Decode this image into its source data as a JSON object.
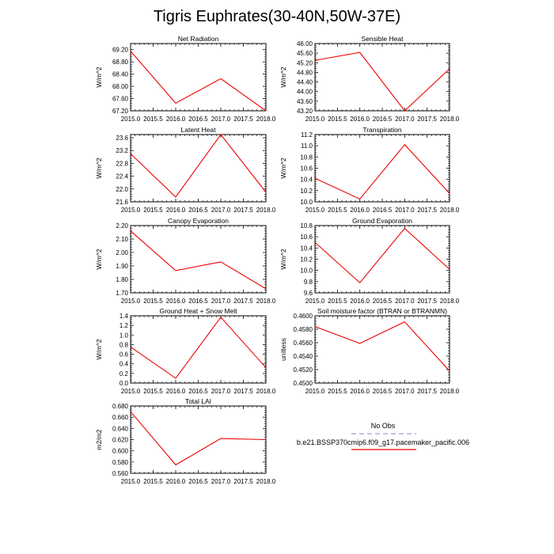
{
  "title": "Tigris Euphrates(30-40N,50W-37E)",
  "legend": {
    "entries": [
      {
        "name": "No Obs",
        "color": "#aaaaee",
        "dashed": true
      },
      {
        "name": "b.e21.BSSP370cmip6.f09_g17.pacemaker_pacific.006",
        "color": "#ee0000",
        "dashed": false
      }
    ]
  },
  "chart_data": [
    {
      "type": "line",
      "title": "Net Radiation",
      "ylabel": "W/m^2",
      "x": [
        2015.0,
        2016.0,
        2017.0,
        2018.0
      ],
      "series": [
        {
          "name": "b.e21.BSSP370cmip6.f09_g17.pacemaker_pacific.006",
          "values": [
            69.15,
            67.45,
            68.25,
            67.2
          ]
        }
      ],
      "xlim": [
        2015.0,
        2018.0
      ],
      "ylim": [
        67.2,
        69.4
      ],
      "xticks": [
        "2015.0",
        "2015.5",
        "2016.0",
        "2016.5",
        "2017.0",
        "2017.5",
        "2018.0"
      ],
      "yticks": [
        "67.20",
        "67.60",
        "68.00",
        "68.40",
        "68.80",
        "69.20"
      ],
      "ytick_values": [
        67.2,
        67.6,
        68.0,
        68.4,
        68.8,
        69.2
      ]
    },
    {
      "type": "line",
      "title": "Sensible Heat",
      "ylabel": "W/m^2",
      "x": [
        2015.0,
        2016.0,
        2017.0,
        2018.0
      ],
      "series": [
        {
          "name": "b.e21.BSSP370cmip6.f09_g17.pacemaker_pacific.006",
          "values": [
            45.3,
            45.63,
            43.2,
            44.95
          ]
        }
      ],
      "xlim": [
        2015.0,
        2018.0
      ],
      "ylim": [
        43.2,
        46.0
      ],
      "xticks": [
        "2015.0",
        "2015.5",
        "2016.0",
        "2016.5",
        "2017.0",
        "2017.5",
        "2018.0"
      ],
      "yticks": [
        "43.20",
        "43.60",
        "44.00",
        "44.40",
        "44.80",
        "45.20",
        "45.60",
        "46.00"
      ],
      "ytick_values": [
        43.2,
        43.6,
        44.0,
        44.4,
        44.8,
        45.2,
        45.6,
        46.0
      ]
    },
    {
      "type": "line",
      "title": "Latent Heat",
      "ylabel": "W/m^2",
      "x": [
        2015.0,
        2016.0,
        2017.0,
        2018.0
      ],
      "series": [
        {
          "name": "b.e21.BSSP370cmip6.f09_g17.pacemaker_pacific.006",
          "values": [
            23.1,
            21.75,
            23.7,
            21.9
          ]
        }
      ],
      "xlim": [
        2015.0,
        2018.0
      ],
      "ylim": [
        21.6,
        23.7
      ],
      "xticks": [
        "2015.0",
        "2015.5",
        "2016.0",
        "2016.5",
        "2017.0",
        "2017.5",
        "2018.0"
      ],
      "yticks": [
        "21.6",
        "22.0",
        "22.4",
        "22.8",
        "23.2",
        "23.6"
      ],
      "ytick_values": [
        21.6,
        22.0,
        22.4,
        22.8,
        23.2,
        23.6
      ]
    },
    {
      "type": "line",
      "title": "Transpiration",
      "ylabel": "W/m^2",
      "x": [
        2015.0,
        2016.0,
        2017.0,
        2018.0
      ],
      "series": [
        {
          "name": "b.e21.BSSP370cmip6.f09_g17.pacemaker_pacific.006",
          "values": [
            10.42,
            10.05,
            11.02,
            10.15
          ]
        }
      ],
      "xlim": [
        2015.0,
        2018.0
      ],
      "ylim": [
        10.0,
        11.2
      ],
      "xticks": [
        "2015.0",
        "2015.5",
        "2016.0",
        "2016.5",
        "2017.0",
        "2017.5",
        "2018.0"
      ],
      "yticks": [
        "10.0",
        "10.2",
        "10.4",
        "10.6",
        "10.8",
        "11.0",
        "11.2"
      ],
      "ytick_values": [
        10.0,
        10.2,
        10.4,
        10.6,
        10.8,
        11.0,
        11.2
      ]
    },
    {
      "type": "line",
      "title": "Canopy Evaporation",
      "ylabel": "W/m^2",
      "x": [
        2015.0,
        2016.0,
        2017.0,
        2018.0
      ],
      "series": [
        {
          "name": "b.e21.BSSP370cmip6.f09_g17.pacemaker_pacific.006",
          "values": [
            2.16,
            1.865,
            1.93,
            1.73
          ]
        }
      ],
      "xlim": [
        2015.0,
        2018.0
      ],
      "ylim": [
        1.7,
        2.2
      ],
      "xticks": [
        "2015.0",
        "2015.5",
        "2016.0",
        "2016.5",
        "2017.0",
        "2017.5",
        "2018.0"
      ],
      "yticks": [
        "1.70",
        "1.80",
        "1.90",
        "2.00",
        "2.10",
        "2.20"
      ],
      "ytick_values": [
        1.7,
        1.8,
        1.9,
        2.0,
        2.1,
        2.2
      ]
    },
    {
      "type": "line",
      "title": "Ground Evaporation",
      "ylabel": "W/m^2",
      "x": [
        2015.0,
        2016.0,
        2017.0,
        2018.0
      ],
      "series": [
        {
          "name": "b.e21.BSSP370cmip6.f09_g17.pacemaker_pacific.006",
          "values": [
            10.5,
            9.78,
            10.75,
            10.02
          ]
        }
      ],
      "xlim": [
        2015.0,
        2018.0
      ],
      "ylim": [
        9.6,
        10.8
      ],
      "xticks": [
        "2015.0",
        "2015.5",
        "2016.0",
        "2016.5",
        "2017.0",
        "2017.5",
        "2018.0"
      ],
      "yticks": [
        "9.6",
        "9.8",
        "10.0",
        "10.2",
        "10.4",
        "10.6",
        "10.8"
      ],
      "ytick_values": [
        9.6,
        9.8,
        10.0,
        10.2,
        10.4,
        10.6,
        10.8
      ]
    },
    {
      "type": "line",
      "title": "Ground Heat + Snow Melt",
      "ylabel": "W/m^2",
      "x": [
        2015.0,
        2016.0,
        2017.0,
        2018.0
      ],
      "series": [
        {
          "name": "b.e21.BSSP370cmip6.f09_g17.pacemaker_pacific.006",
          "values": [
            0.75,
            0.1,
            1.37,
            0.32
          ]
        }
      ],
      "xlim": [
        2015.0,
        2018.0
      ],
      "ylim": [
        0.0,
        1.4
      ],
      "xticks": [
        "2015.0",
        "2015.5",
        "2016.0",
        "2016.5",
        "2017.0",
        "2017.5",
        "2018.0"
      ],
      "yticks": [
        "0.0",
        "0.2",
        "0.4",
        "0.6",
        "0.8",
        "1.0",
        "1.2",
        "1.4"
      ],
      "ytick_values": [
        0.0,
        0.2,
        0.4,
        0.6,
        0.8,
        1.0,
        1.2,
        1.4
      ]
    },
    {
      "type": "line",
      "title": "Soil moisture factor (BTRAN or BTRANMN)",
      "ylabel": "unitless",
      "x": [
        2015.0,
        2016.0,
        2017.0,
        2018.0
      ],
      "series": [
        {
          "name": "b.e21.BSSP370cmip6.f09_g17.pacemaker_pacific.006",
          "values": [
            0.4584,
            0.4559,
            0.4591,
            0.4518
          ]
        }
      ],
      "xlim": [
        2015.0,
        2018.0
      ],
      "ylim": [
        0.45,
        0.46
      ],
      "xticks": [
        "2015.0",
        "2015.5",
        "2016.0",
        "2016.5",
        "2017.0",
        "2017.5",
        "2018.0"
      ],
      "yticks": [
        "0.4500",
        "0.4520",
        "0.4540",
        "0.4560",
        "0.4580",
        "0.4600"
      ],
      "ytick_values": [
        0.45,
        0.452,
        0.454,
        0.456,
        0.458,
        0.46
      ]
    },
    {
      "type": "line",
      "title": "Total LAI",
      "ylabel": "m2/m2",
      "x": [
        2015.0,
        2016.0,
        2017.0,
        2018.0
      ],
      "series": [
        {
          "name": "b.e21.BSSP370cmip6.f09_g17.pacemaker_pacific.006",
          "values": [
            0.67,
            0.575,
            0.622,
            0.62
          ]
        }
      ],
      "xlim": [
        2015.0,
        2018.0
      ],
      "ylim": [
        0.56,
        0.68
      ],
      "xticks": [
        "2015.0",
        "2015.5",
        "2016.0",
        "2016.5",
        "2017.0",
        "2017.5",
        "2018.0"
      ],
      "yticks": [
        "0.560",
        "0.580",
        "0.600",
        "0.620",
        "0.640",
        "0.660",
        "0.680"
      ],
      "ytick_values": [
        0.56,
        0.58,
        0.6,
        0.62,
        0.64,
        0.66,
        0.68
      ]
    }
  ]
}
